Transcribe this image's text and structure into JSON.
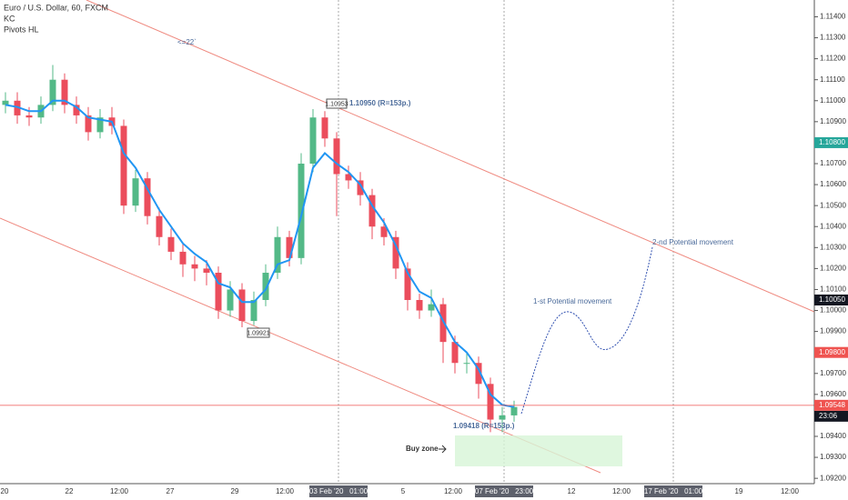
{
  "chart_data": {
    "type": "candlestick",
    "title": "Euro / U.S. Dollar, 60, FXCM",
    "study": "Pivots HL",
    "open": [
      1.1098,
      1.11,
      1.1093,
      1.1092,
      1.1098,
      1.111,
      1.1098,
      1.1093,
      1.1085,
      1.1092,
      1.1088,
      1.105,
      1.1063,
      1.1045,
      1.1035,
      1.1028,
      1.1022,
      1.102,
      1.1018,
      1.1,
      1.101,
      1.0995,
      1.1005,
      1.1018,
      1.1035,
      1.1025,
      1.107,
      1.1092,
      1.1082,
      1.1065,
      1.1062,
      1.1055,
      1.104,
      1.1035,
      1.102,
      1.1005,
      1.1,
      1.1003,
      1.0985,
      1.0975,
      1.0975,
      1.0965,
      1.0948,
      1.095
    ],
    "high": [
      1.1104,
      1.1104,
      1.1097,
      1.1102,
      1.1117,
      1.1113,
      1.1102,
      1.1097,
      1.1096,
      1.1097,
      1.1091,
      1.1067,
      1.1066,
      1.1049,
      1.1039,
      1.1032,
      1.1026,
      1.1024,
      1.1021,
      1.1014,
      1.1013,
      1.1009,
      1.1022,
      1.104,
      1.1038,
      1.1075,
      1.1096,
      1.1095,
      1.1085,
      1.1069,
      1.1066,
      1.1058,
      1.1044,
      1.1038,
      1.1023,
      1.1008,
      1.101,
      1.1006,
      1.0988,
      1.098,
      1.0978,
      1.0968,
      1.0954,
      1.0957
    ],
    "low": [
      1.1094,
      1.1089,
      1.1088,
      1.1089,
      1.1095,
      1.1094,
      1.1089,
      1.1081,
      1.1082,
      1.1084,
      1.1046,
      1.1047,
      1.1041,
      1.1031,
      1.1024,
      1.1016,
      1.1014,
      1.1012,
      1.0996,
      1.0997,
      1.0992,
      1.0993,
      1.1002,
      1.1015,
      1.1021,
      1.1022,
      1.1066,
      1.1078,
      1.1045,
      1.1058,
      1.105,
      1.1034,
      1.1031,
      1.1015,
      1.1,
      1.0996,
      1.0997,
      1.0975,
      1.097,
      1.097,
      1.0958,
      1.0942,
      1.0942,
      1.0947
    ],
    "close": [
      1.11,
      1.1093,
      1.1092,
      1.1098,
      1.111,
      1.1098,
      1.1093,
      1.1085,
      1.1092,
      1.1088,
      1.105,
      1.1063,
      1.1045,
      1.1035,
      1.1028,
      1.1022,
      1.102,
      1.1018,
      1.1,
      1.101,
      1.0995,
      1.1005,
      1.1018,
      1.1035,
      1.1025,
      1.107,
      1.1092,
      1.1082,
      1.1065,
      1.1062,
      1.1055,
      1.104,
      1.1035,
      1.102,
      1.1005,
      1.1,
      1.1003,
      1.0985,
      1.0975,
      1.0975,
      1.0965,
      1.0948,
      1.095,
      1.0954
    ],
    "up_color": "#53b987",
    "down_color": "#eb4d5c",
    "series": [
      {
        "name": "KC",
        "color": "#2196f3",
        "values": [
          1.1098,
          1.1097,
          1.1095,
          1.1095,
          1.11,
          1.11,
          1.1097,
          1.1092,
          1.1091,
          1.109,
          1.1075,
          1.1068,
          1.1058,
          1.1048,
          1.104,
          1.1032,
          1.1027,
          1.1023,
          1.1013,
          1.1011,
          1.1004,
          1.1004,
          1.101,
          1.1022,
          1.1024,
          1.1045,
          1.1068,
          1.1075,
          1.107,
          1.1066,
          1.106,
          1.105,
          1.1042,
          1.1031,
          1.1018,
          1.1009,
          1.1006,
          1.0995,
          1.0985,
          1.098,
          1.0972,
          1.096,
          1.0955,
          1.0954
        ]
      }
    ],
    "ylim": [
      1.0914,
      1.1148
    ],
    "yticks": [
      {
        "value": 1.114,
        "label": "1.11400"
      },
      {
        "value": 1.113,
        "label": "1.11300"
      },
      {
        "value": 1.112,
        "label": "1.11200"
      },
      {
        "value": 1.111,
        "label": "1.11100"
      },
      {
        "value": 1.11,
        "label": "1.11000"
      },
      {
        "value": 1.109,
        "label": "1.10900"
      },
      {
        "value": 1.107,
        "label": "1.10700"
      },
      {
        "value": 1.106,
        "label": "1.10600"
      },
      {
        "value": 1.105,
        "label": "1.10500"
      },
      {
        "value": 1.104,
        "label": "1.10400"
      },
      {
        "value": 1.103,
        "label": "1.10300"
      },
      {
        "value": 1.102,
        "label": "1.10200"
      },
      {
        "value": 1.101,
        "label": "1.10100"
      },
      {
        "value": 1.1,
        "label": "1.10000"
      },
      {
        "value": 1.099,
        "label": "1.09900"
      },
      {
        "value": 1.097,
        "label": "1.09700"
      },
      {
        "value": 1.096,
        "label": "1.09600"
      },
      {
        "value": 1.094,
        "label": "1.09400"
      },
      {
        "value": 1.093,
        "label": "1.09300"
      },
      {
        "value": 1.092,
        "label": "1.09200"
      }
    ],
    "price_tags": [
      {
        "value": 1.108,
        "label": "1.10800",
        "color": "#26a69a"
      },
      {
        "value": 1.1005,
        "label": "1.10050",
        "color": "#131722"
      },
      {
        "value": 1.098,
        "label": "1.09800",
        "color": "#ef5350"
      },
      {
        "value": 1.09548,
        "label": "1.09548",
        "color": "#ef5350"
      }
    ],
    "countdown": "23:06",
    "x_labels": [
      "20",
      "22",
      "12:00",
      "27",
      "29",
      "12:00",
      "03 Feb '20   01:00",
      "5",
      "12:00",
      "07 Feb '20   23:00",
      "12",
      "12:00",
      "17 Feb '20   01:00",
      "19",
      "12:00"
    ],
    "annotations": {
      "angle": "<=22`",
      "high_box": "1.10953",
      "high_text": "1.10950 (R=153p.)",
      "low_box": "1.09921",
      "low_text": "1.09418 (R=153p.)",
      "first_move": "1-st Potential movement",
      "second_move": "2-nd Potential movement",
      "buy_zone": "Buy zone"
    }
  }
}
